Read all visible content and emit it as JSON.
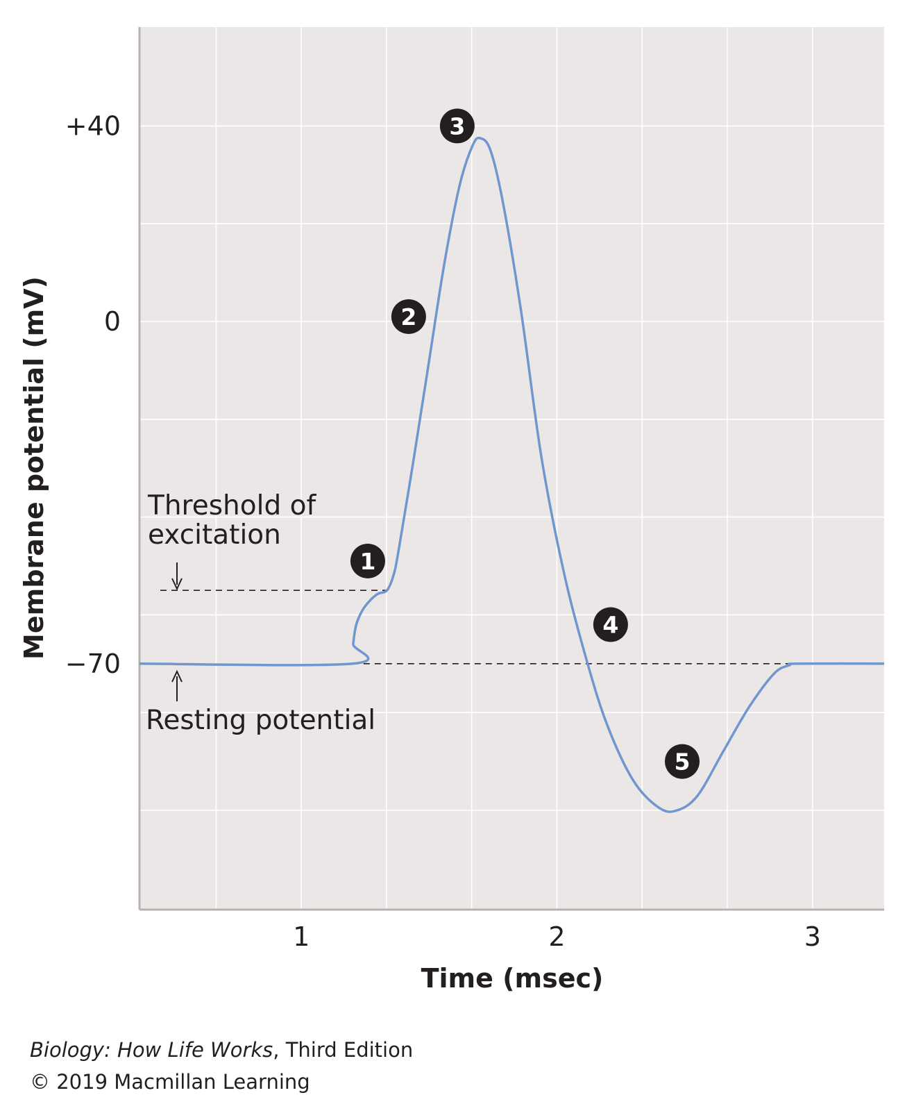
{
  "chart_data": {
    "type": "line",
    "xlabel": "Time (msec)",
    "ylabel": "Membrane potential (mV)",
    "xlim": [
      0.367,
      3.28
    ],
    "ylim": [
      -120,
      56
    ],
    "x_ticks": [
      {
        "value": 1,
        "label": "1"
      },
      {
        "value": 2,
        "label": "2"
      },
      {
        "value": 3,
        "label": "3"
      }
    ],
    "y_ticks": [
      {
        "value": 40,
        "label": "+40"
      },
      {
        "value": 0,
        "label": "0"
      },
      {
        "value": -70,
        "label": "−70"
      }
    ],
    "grid": true,
    "x_grid_step": 0.3333,
    "y_grid_values": [
      40,
      20,
      0,
      -20,
      -40,
      -60,
      -80,
      -100
    ],
    "line_color": "#7096cf",
    "background_color": "#ebe7e6",
    "series": [
      {
        "x": [
          0.367,
          1.2,
          1.203,
          1.215,
          1.24,
          1.27,
          1.3,
          1.335,
          1.36,
          1.38,
          1.44,
          1.5,
          1.56,
          1.62,
          1.67,
          1.7,
          1.74,
          1.79,
          1.86,
          1.94,
          2.03,
          2.12,
          2.2,
          2.3,
          2.4,
          2.47,
          2.55,
          2.65,
          2.75,
          2.85,
          2.91,
          2.94,
          3.28
        ],
        "y": [
          -70,
          -70,
          -66,
          -62,
          -59,
          -57,
          -55.7,
          -55,
          -52,
          -47,
          -28,
          -8,
          12,
          28,
          36,
          37.5,
          35,
          24,
          2,
          -28,
          -52,
          -70,
          -83,
          -94,
          -99.5,
          -100,
          -97,
          -88,
          -79,
          -72,
          -70.3,
          -70,
          -70
        ]
      }
    ],
    "reference_lines": [
      {
        "name": "threshold",
        "value": -55,
        "style": "dashed"
      },
      {
        "name": "resting",
        "value": -70,
        "style": "dashed"
      }
    ],
    "annotations": {
      "threshold_label_line1": "Threshold of",
      "threshold_label_line2": "excitation",
      "resting_label": "Resting potential",
      "markers": [
        {
          "label": "1",
          "x": 1.26,
          "y": -49
        },
        {
          "label": "2",
          "x": 1.42,
          "y": 1
        },
        {
          "label": "3",
          "x": 1.61,
          "y": 40
        },
        {
          "label": "4",
          "x": 2.21,
          "y": -62
        },
        {
          "label": "5",
          "x": 2.49,
          "y": -90
        }
      ]
    }
  },
  "credit": {
    "book_title": "Biology: How Life Works",
    "edition": ", Third Edition",
    "copyright": "© 2019 Macmillan Learning"
  }
}
